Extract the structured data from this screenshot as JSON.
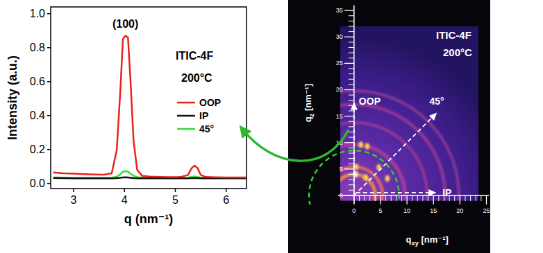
{
  "chart_data": [
    {
      "type": "line",
      "x_label": "q (nm⁻¹)",
      "y_label": "Intensity (a.u.)",
      "annotations": [
        "(100)",
        "ITIC-4F",
        "200°C"
      ],
      "x": [
        2.6,
        2.8,
        3.0,
        3.2,
        3.4,
        3.6,
        3.75,
        3.85,
        3.92,
        3.97,
        4.02,
        4.07,
        4.12,
        4.18,
        4.25,
        4.35,
        4.5,
        4.7,
        4.9,
        5.1,
        5.25,
        5.32,
        5.38,
        5.44,
        5.5,
        5.6,
        5.8,
        6.0,
        6.2,
        6.4
      ],
      "series": [
        {
          "name": "OOP",
          "color": "#e8231e",
          "values": [
            0.065,
            0.06,
            0.058,
            0.055,
            0.053,
            0.052,
            0.06,
            0.2,
            0.55,
            0.85,
            0.87,
            0.86,
            0.6,
            0.25,
            0.08,
            0.045,
            0.04,
            0.038,
            0.037,
            0.038,
            0.05,
            0.09,
            0.105,
            0.09,
            0.05,
            0.038,
            0.036,
            0.035,
            0.035,
            0.035
          ]
        },
        {
          "name": "IP",
          "color": "#111111",
          "values": [
            0.032,
            0.031,
            0.03,
            0.03,
            0.03,
            0.03,
            0.03,
            0.031,
            0.033,
            0.035,
            0.036,
            0.035,
            0.033,
            0.031,
            0.03,
            0.03,
            0.03,
            0.03,
            0.03,
            0.03,
            0.03,
            0.031,
            0.032,
            0.031,
            0.03,
            0.03,
            0.03,
            0.03,
            0.03,
            0.03
          ]
        },
        {
          "name": "45°",
          "color": "#33dd33",
          "values": [
            0.035,
            0.034,
            0.033,
            0.033,
            0.033,
            0.033,
            0.034,
            0.04,
            0.055,
            0.068,
            0.072,
            0.07,
            0.058,
            0.045,
            0.037,
            0.034,
            0.033,
            0.033,
            0.033,
            0.033,
            0.034,
            0.038,
            0.042,
            0.038,
            0.034,
            0.033,
            0.033,
            0.033,
            0.033,
            0.033
          ]
        }
      ],
      "xlim": [
        2.55,
        6.4
      ],
      "xticks": [
        3,
        4,
        5,
        6
      ],
      "ylim": [
        -0.03,
        1.04
      ],
      "yticks": [
        {
          "value": 0,
          "label": "0.0"
        },
        0.2,
        0.4,
        0.6,
        0.8,
        {
          "value": 1,
          "label": "1.0"
        }
      ],
      "legend": "right"
    },
    {
      "type": "image",
      "title": "ITIC-4F",
      "subtitle": "200°C",
      "x_label": "qxy [nm⁻¹]",
      "y_label": "qz [nm⁻¹]",
      "xlim": [
        -3,
        25.5
      ],
      "xticks": [
        0,
        5,
        10,
        15,
        20,
        25
      ],
      "ylim": [
        -1.5,
        36
      ],
      "yticks": [
        0,
        5,
        10,
        15,
        20,
        25,
        30,
        35
      ],
      "directions": [
        {
          "label": "OOP",
          "angle": 90
        },
        {
          "label": "45°",
          "angle": 45
        },
        {
          "label": "IP",
          "angle": 0
        }
      ],
      "rings": [
        4.0,
        5.4,
        9.6,
        13.8,
        17.2,
        19.8
      ],
      "spots": [
        {
          "qxy": 0.3,
          "qz": 4.0
        },
        {
          "qxy": 0.4,
          "qz": 5.4
        },
        {
          "qxy": 1.3,
          "qz": 9.6
        },
        {
          "qxy": 2.5,
          "qz": 9.3
        },
        {
          "qxy": 4.7,
          "qz": 5.3
        },
        {
          "qxy": 2.2,
          "qz": 3.4
        },
        {
          "qxy": 6.3,
          "qz": 3.2
        }
      ]
    }
  ]
}
